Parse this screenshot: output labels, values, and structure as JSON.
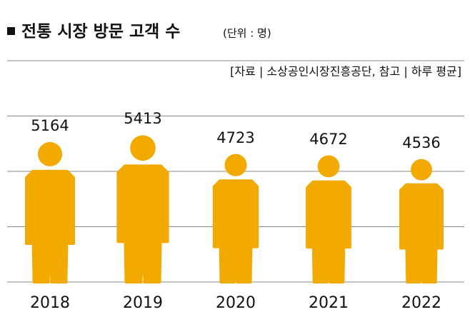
{
  "chart_data": {
    "type": "pictogram",
    "title": "전통 시장 방문 고객 수",
    "subtitle": "(단위 : 명)",
    "source": "[자료 | 소상공인시장진흥공단, 참고 | 하루 평균]",
    "categories": [
      "2018",
      "2019",
      "2020",
      "2021",
      "2022"
    ],
    "values": [
      5164,
      5413,
      4723,
      4672,
      4536
    ],
    "color": "#f2a900",
    "ylim": [
      0,
      8000
    ],
    "yticks": [
      0,
      2000,
      4000,
      6000,
      8000
    ],
    "grid": true
  }
}
